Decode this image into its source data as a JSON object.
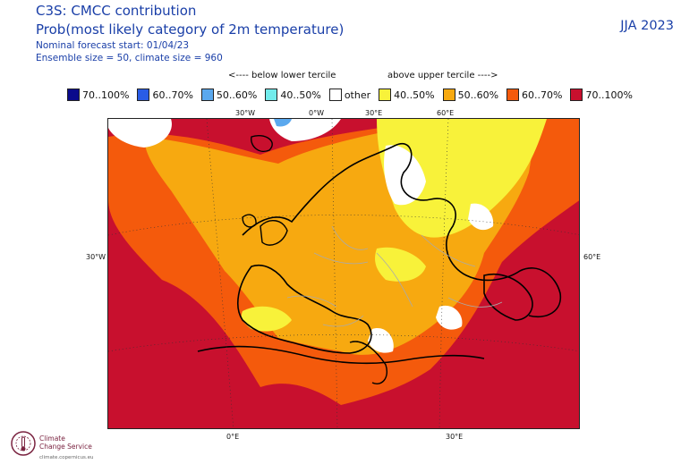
{
  "header": {
    "title_line1": "C3S: CMCC contribution",
    "title_line2": "Prob(most likely category of 2m temperature)",
    "forecast_start": "Nominal forecast start: 01/04/23",
    "ensemble_info": "Ensemble size = 50, climate size = 960",
    "season": "JJA 2023"
  },
  "legend": {
    "below_label": "<---- below lower tercile",
    "above_label": "above upper tercile ---->",
    "items": [
      {
        "label": "70..100%",
        "color": "#0a0a8c"
      },
      {
        "label": "60..70%",
        "color": "#2a5ce6"
      },
      {
        "label": "50..60%",
        "color": "#5aa8ee"
      },
      {
        "label": "40..50%",
        "color": "#72ecec"
      },
      {
        "label": "other",
        "color": "#ffffff"
      },
      {
        "label": "40..50%",
        "color": "#f8f23a"
      },
      {
        "label": "50..60%",
        "color": "#f7a910"
      },
      {
        "label": "60..70%",
        "color": "#f45a0c"
      },
      {
        "label": "70..100%",
        "color": "#c8102e"
      }
    ]
  },
  "map": {
    "grid_labels": {
      "top": [
        "30°W",
        "0°W",
        "30°E",
        "60°E"
      ],
      "left": "30°W",
      "right": "60°E",
      "bottom": [
        "0°E",
        "30°E"
      ]
    }
  },
  "logo": {
    "name_line1": "Climate",
    "name_line2": "Change Service",
    "url": "climate.copernicus.eu",
    "color": "#7a2340"
  }
}
